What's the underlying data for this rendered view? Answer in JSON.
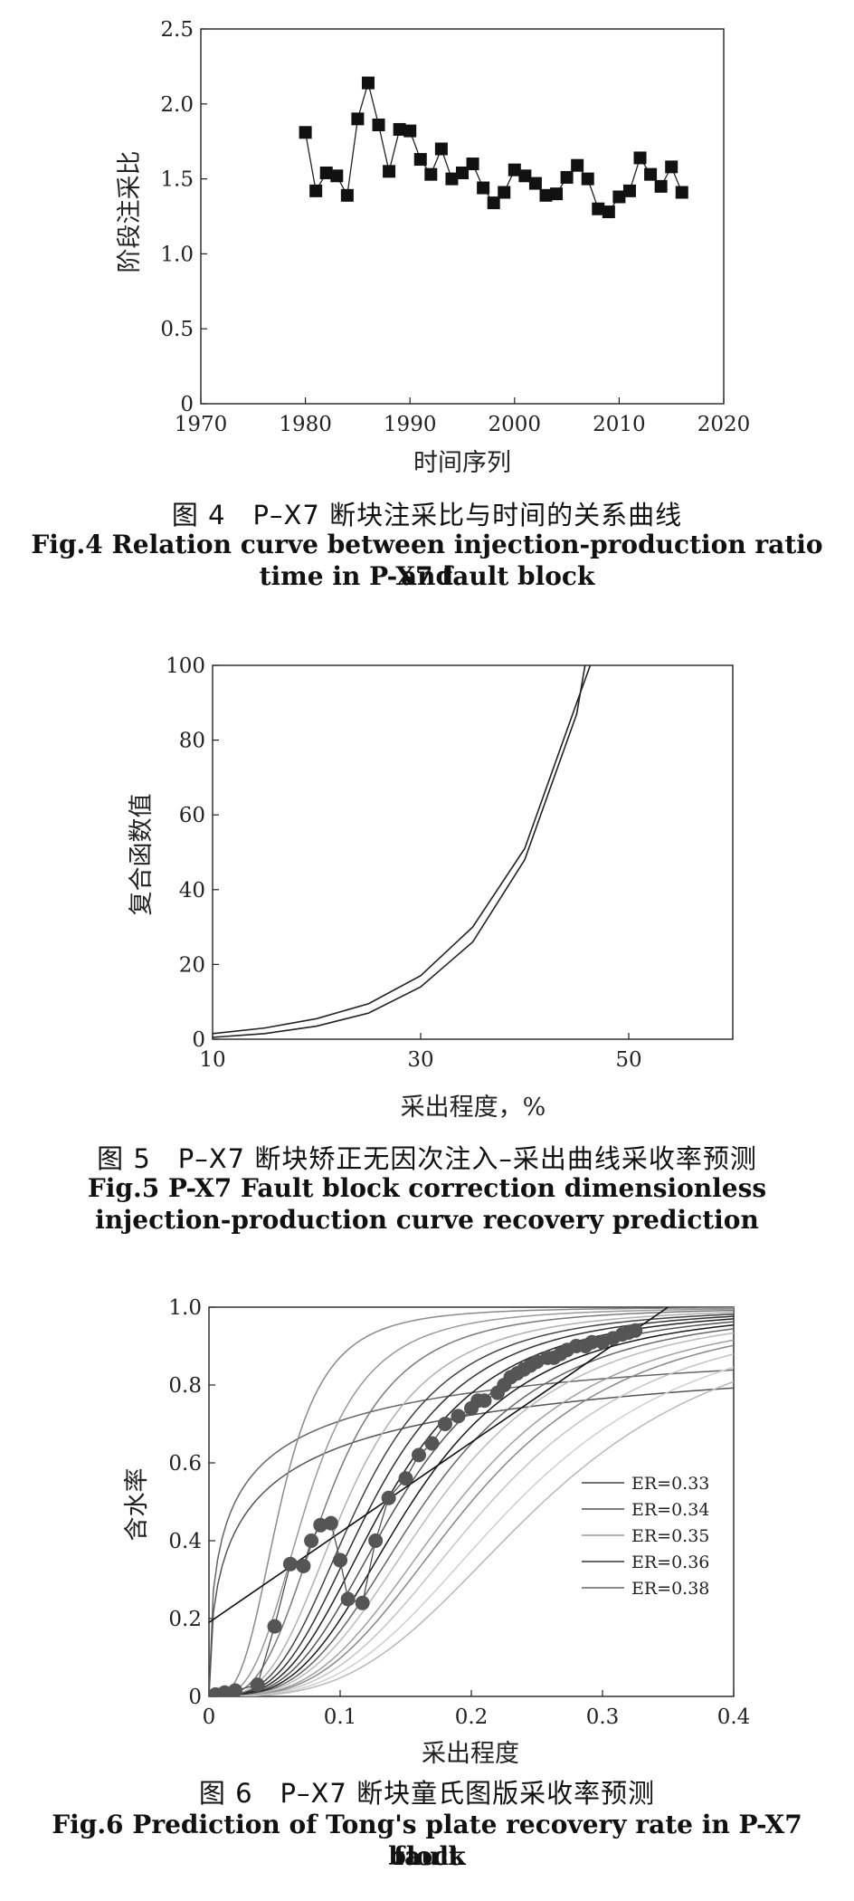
{
  "fig4": {
    "chart_data": {
      "type": "line",
      "xlabel": "时间序列",
      "ylabel": "阶段注采比",
      "xlim": [
        1970,
        2020
      ],
      "ylim": [
        0,
        2.5
      ],
      "xticks": [
        "1970",
        "1980",
        "1990",
        "2000",
        "2010",
        "2020"
      ],
      "yticks": [
        "0",
        "0.5",
        "1.0",
        "1.5",
        "2.0",
        "2.5"
      ],
      "markers": "square",
      "x": [
        1980,
        1981,
        1982,
        1983,
        1984,
        1985,
        1986,
        1987,
        1988,
        1989,
        1990,
        1991,
        1992,
        1993,
        1994,
        1995,
        1996,
        1997,
        1998,
        1999,
        2000,
        2001,
        2002,
        2003,
        2004,
        2005,
        2006,
        2007,
        2008,
        2009,
        2010,
        2011,
        2012,
        2013,
        2014,
        2015,
        2016
      ],
      "y": [
        1.81,
        1.42,
        1.54,
        1.52,
        1.39,
        1.9,
        2.14,
        1.86,
        1.55,
        1.83,
        1.82,
        1.63,
        1.53,
        1.7,
        1.5,
        1.54,
        1.6,
        1.44,
        1.34,
        1.41,
        1.56,
        1.52,
        1.47,
        1.39,
        1.4,
        1.51,
        1.59,
        1.5,
        1.3,
        1.28,
        1.38,
        1.42,
        1.64,
        1.53,
        1.45,
        1.58,
        1.41
      ]
    },
    "caption_cn": "图 4　P–X7 断块注采比与时间的关系曲线",
    "caption_en_1": "Fig.4 Relation curve between injection-production ratio and",
    "caption_en_2": "time in P-X7 fault block"
  },
  "fig5": {
    "chart_data": {
      "type": "line",
      "xlabel": "采出程度，%",
      "ylabel": "复合函数值",
      "xlim": [
        10,
        60
      ],
      "ylim": [
        0,
        100
      ],
      "xticks": [
        "10",
        "30",
        "50"
      ],
      "yticks": [
        "0",
        "20",
        "40",
        "60",
        "80",
        "100"
      ],
      "series": [
        {
          "x": [
            10,
            15,
            20,
            25,
            30,
            35,
            40,
            45,
            46.3
          ],
          "y": [
            1.5,
            3,
            5.5,
            9.5,
            17,
            30,
            51,
            90,
            100
          ]
        },
        {
          "x": [
            10,
            15,
            20,
            25,
            30,
            35,
            40,
            45,
            45.8
          ],
          "y": [
            0.5,
            1.5,
            3.5,
            7,
            14,
            26,
            48,
            87,
            100
          ]
        }
      ]
    },
    "caption_cn": "图 5　P–X7 断块矫正无因次注入–采出曲线采收率预测",
    "caption_en_1": "Fig.5 P-X7 Fault block correction dimensionless",
    "caption_en_2": "injection-production curve recovery prediction"
  },
  "fig6": {
    "chart_data": {
      "type": "line",
      "xlabel": "采出程度",
      "ylabel": "含水率",
      "xlim": [
        0,
        0.4
      ],
      "ylim": [
        0,
        1.0
      ],
      "xticks": [
        "0",
        "0.1",
        "0.2",
        "0.3",
        "0.4"
      ],
      "yticks": [
        "0",
        "0.2",
        "0.4",
        "0.6",
        "0.8",
        "1.0"
      ],
      "legend_position": "right",
      "legend": [
        {
          "label": "ER=0.33",
          "color": "#444444"
        },
        {
          "label": "ER=0.34",
          "color": "#555555"
        },
        {
          "label": "ER=0.35",
          "color": "#999999"
        },
        {
          "label": "ER=0.36",
          "color": "#333333"
        },
        {
          "label": "ER=0.38",
          "color": "#666666"
        }
      ],
      "plate_curve_midpoints": [
        0.02,
        0.035,
        0.055,
        0.075,
        0.09,
        0.105,
        0.115,
        0.125,
        0.135,
        0.145,
        0.155,
        0.165,
        0.175,
        0.19,
        0.2,
        0.215,
        0.235,
        0.255
      ],
      "plate_curve_colors": [
        "#666666",
        "#555555",
        "#8a8a8a",
        "#999999",
        "#7a7a7a",
        "#b0b0b0",
        "#444444",
        "#333333",
        "#222222",
        "#555555",
        "#1a1a1a",
        "#666666",
        "#bbbbbb",
        "#a0a0a0",
        "#888888",
        "#c4c4c4",
        "#cfcfcf",
        "#b8b8b8"
      ],
      "fit_line": {
        "x": [
          0,
          0.35
        ],
        "y": [
          0.19,
          1.0
        ]
      },
      "scatter": {
        "x": [
          0.005,
          0.012,
          0.02,
          0.037,
          0.05,
          0.062,
          0.072,
          0.078,
          0.085,
          0.093,
          0.1,
          0.1,
          0.106,
          0.117,
          0.127,
          0.137,
          0.15,
          0.16,
          0.17,
          0.18,
          0.19,
          0.2,
          0.205,
          0.21,
          0.22,
          0.225,
          0.23,
          0.235,
          0.24,
          0.245,
          0.25,
          0.258,
          0.263,
          0.268,
          0.273,
          0.28,
          0.287,
          0.292,
          0.3,
          0.308,
          0.315,
          0.32,
          0.325
        ],
        "y": [
          0.005,
          0.01,
          0.015,
          0.03,
          0.18,
          0.34,
          0.335,
          0.4,
          0.44,
          0.445,
          0.35,
          0.35,
          0.25,
          0.24,
          0.4,
          0.51,
          0.56,
          0.62,
          0.65,
          0.7,
          0.72,
          0.74,
          0.76,
          0.76,
          0.78,
          0.8,
          0.82,
          0.83,
          0.84,
          0.85,
          0.86,
          0.87,
          0.87,
          0.88,
          0.89,
          0.9,
          0.9,
          0.91,
          0.91,
          0.92,
          0.93,
          0.935,
          0.94
        ]
      }
    },
    "caption_cn": "图 6　P–X7 断块童氏图版采收率预测",
    "caption_en_1": "Fig.6 Prediction of Tong's plate recovery rate in P-X7 fault",
    "caption_en_2": "block"
  }
}
